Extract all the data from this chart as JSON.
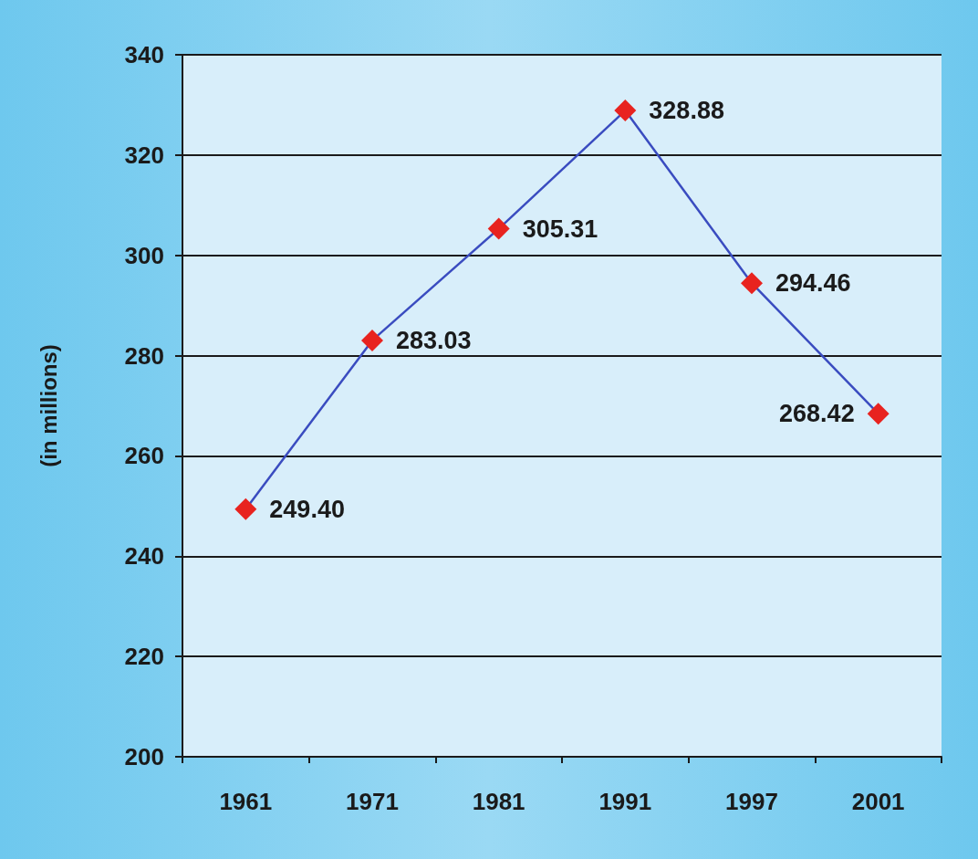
{
  "chart_data": {
    "type": "line",
    "ylabel": "(in millions)",
    "categories": [
      "1961",
      "1971",
      "1981",
      "1991",
      "1997",
      "2001"
    ],
    "series": [
      {
        "color": "#3a4cc0",
        "values": [
          249.4,
          283.03,
          305.31,
          328.88,
          294.46,
          268.42
        ],
        "value_labels": [
          "249.40",
          "283.03",
          "305.31",
          "328.88",
          "294.46",
          "268.42"
        ]
      }
    ],
    "ylim": [
      200,
      340
    ],
    "yticks": [
      200,
      220,
      240,
      260,
      280,
      300,
      320,
      340
    ],
    "grid": "y",
    "marker": "diamond",
    "line_style": "solid"
  }
}
